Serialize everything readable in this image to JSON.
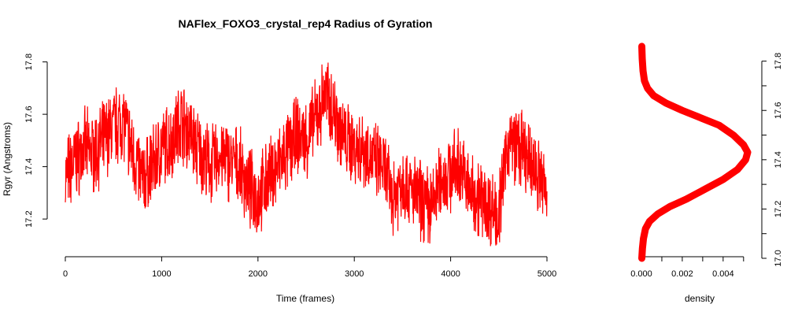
{
  "chart_data": [
    {
      "type": "line",
      "title": "NAFlex_FOXO3_crystal_rep4 Radius of Gyration",
      "xlabel": "Time (frames)",
      "ylabel": "Rgyr (Angstroms)",
      "xlim": [
        0,
        5000
      ],
      "ylim": [
        17.05,
        17.85
      ],
      "x_ticks": [
        "0",
        "1000",
        "2000",
        "3000",
        "4000",
        "5000"
      ],
      "y_ticks": [
        "17.2",
        "17.4",
        "17.6",
        "17.8"
      ],
      "color": "#ff0000",
      "series": [
        {
          "name": "",
          "x": [
            0,
            100,
            200,
            300,
            400,
            500,
            600,
            700,
            800,
            900,
            1000,
            1100,
            1200,
            1300,
            1400,
            1500,
            1600,
            1700,
            1800,
            1900,
            2000,
            2100,
            2200,
            2300,
            2400,
            2500,
            2600,
            2700,
            2800,
            2900,
            3000,
            3100,
            3200,
            3300,
            3400,
            3500,
            3600,
            3700,
            3800,
            3900,
            4000,
            4100,
            4200,
            4300,
            4400,
            4500,
            4600,
            4700,
            4800,
            4900,
            5000
          ],
          "values": [
            17.36,
            17.42,
            17.47,
            17.45,
            17.5,
            17.55,
            17.58,
            17.45,
            17.35,
            17.4,
            17.47,
            17.5,
            17.58,
            17.52,
            17.45,
            17.4,
            17.44,
            17.42,
            17.4,
            17.32,
            17.28,
            17.35,
            17.4,
            17.45,
            17.52,
            17.5,
            17.58,
            17.68,
            17.6,
            17.5,
            17.48,
            17.47,
            17.42,
            17.4,
            17.28,
            17.35,
            17.3,
            17.27,
            17.24,
            17.35,
            17.38,
            17.4,
            17.3,
            17.28,
            17.25,
            17.22,
            17.5,
            17.48,
            17.42,
            17.38,
            17.3
          ]
        }
      ]
    },
    {
      "type": "line",
      "title": "",
      "xlabel": "density",
      "ylabel": "",
      "xlim": [
        0,
        0.0052
      ],
      "ylim": [
        17.0,
        17.85
      ],
      "x_ticks": [
        "0.000",
        "0.002",
        "0.004"
      ],
      "y_ticks": [
        "17.0",
        "17.2",
        "17.4",
        "17.6",
        "17.8"
      ],
      "color": "#ff0000",
      "series": [
        {
          "name": "",
          "x": [
            2e-05,
            5e-05,
            0.0001,
            0.0002,
            0.0004,
            0.0008,
            0.0014,
            0.0022,
            0.0031,
            0.004,
            0.0047,
            0.0051,
            0.0052,
            0.005,
            0.0045,
            0.0038,
            0.0029,
            0.002,
            0.0012,
            0.0006,
            0.0003,
            0.00015,
            8e-05,
            4e-05,
            2e-05
          ],
          "values": [
            17.0,
            17.04,
            17.08,
            17.12,
            17.15,
            17.18,
            17.21,
            17.24,
            17.28,
            17.32,
            17.36,
            17.4,
            17.43,
            17.46,
            17.5,
            17.54,
            17.57,
            17.6,
            17.63,
            17.66,
            17.69,
            17.72,
            17.76,
            17.81,
            17.86
          ]
        }
      ]
    }
  ]
}
